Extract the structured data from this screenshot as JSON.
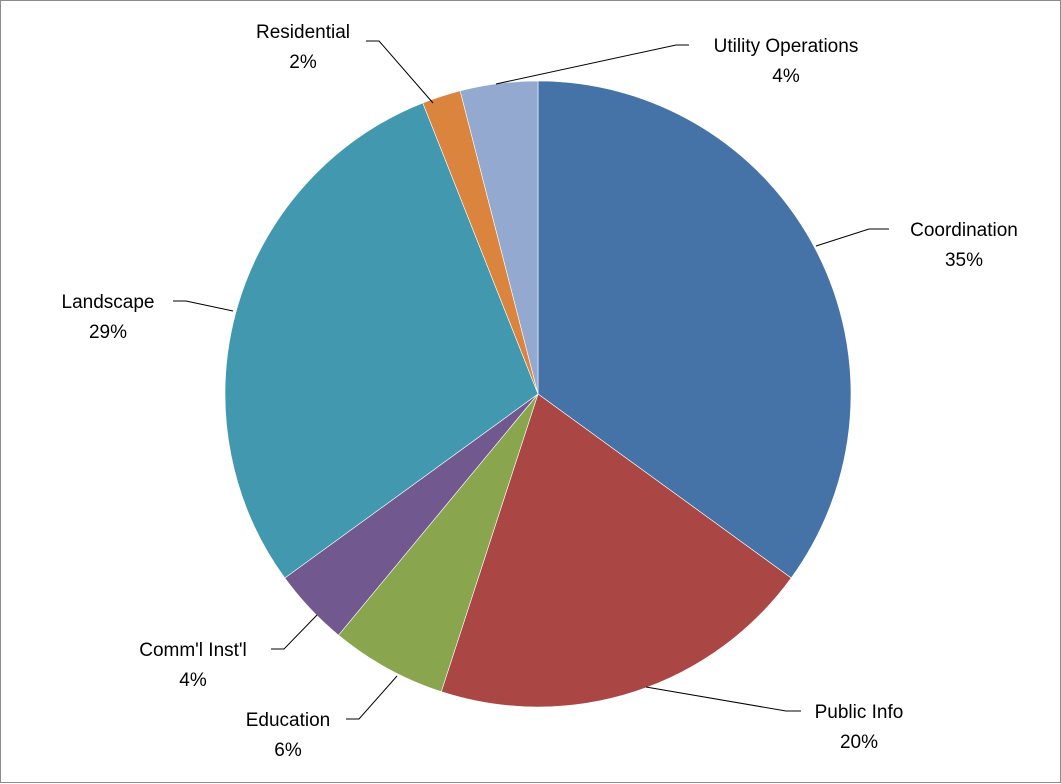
{
  "chart_data": {
    "type": "pie",
    "title": "",
    "legend": "none",
    "start_angle_deg": 0,
    "direction": "clockwise",
    "slices": [
      {
        "label": "Coordination",
        "value": 35,
        "value_label": "35%",
        "color": "#4572A7"
      },
      {
        "label": "Public Info",
        "value": 20,
        "value_label": "20%",
        "color": "#AA4643"
      },
      {
        "label": "Education",
        "value": 6,
        "value_label": "6%",
        "color": "#89A54E"
      },
      {
        "label": "Comm'l Inst'l",
        "value": 4,
        "value_label": "4%",
        "color": "#71588F"
      },
      {
        "label": "Landscape",
        "value": 29,
        "value_label": "29%",
        "color": "#4198AF"
      },
      {
        "label": "Residential",
        "value": 2,
        "value_label": "2%",
        "color": "#DB843D"
      },
      {
        "label": "Utility Operations",
        "value": 4,
        "value_label": "4%",
        "color": "#93A9CF"
      }
    ]
  }
}
